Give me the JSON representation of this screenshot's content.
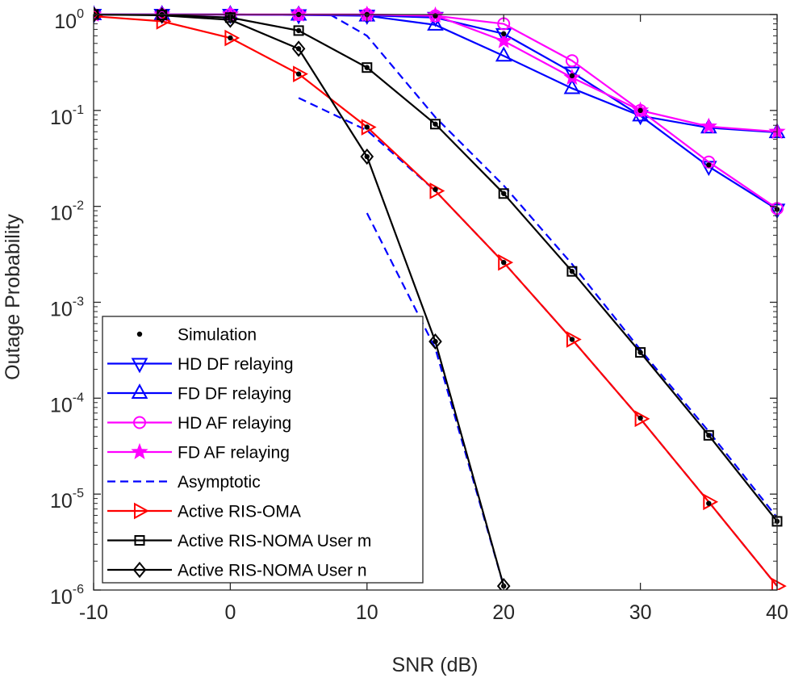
{
  "chart_data": {
    "type": "line",
    "title": "",
    "xlabel": "SNR (dB)",
    "ylabel": "Outage Probability",
    "xlim": [
      -10,
      40
    ],
    "ylim": [
      1e-06,
      1
    ],
    "yscale": "log",
    "grid": false,
    "legend_position": "bottom-left",
    "x_ticks": [
      {
        "value": -10,
        "label": "-10"
      },
      {
        "value": 0,
        "label": "0"
      },
      {
        "value": 10,
        "label": "10"
      },
      {
        "value": 20,
        "label": "20"
      },
      {
        "value": 30,
        "label": "30"
      },
      {
        "value": 40,
        "label": "40"
      }
    ],
    "y_ticks": [
      {
        "exp": 0,
        "base": "10",
        "sup": "0"
      },
      {
        "exp": -1,
        "base": "10",
        "sup": "-1"
      },
      {
        "exp": -2,
        "base": "10",
        "sup": "-2"
      },
      {
        "exp": -3,
        "base": "10",
        "sup": "-3"
      },
      {
        "exp": -4,
        "base": "10",
        "sup": "-4"
      },
      {
        "exp": -5,
        "base": "10",
        "sup": "-5"
      },
      {
        "exp": -6,
        "base": "10",
        "sup": "-6"
      }
    ],
    "legend": [
      {
        "key": "sim",
        "label": "Simulation"
      },
      {
        "key": "hd_df",
        "label": "HD DF relaying"
      },
      {
        "key": "fd_df",
        "label": "FD DF relaying"
      },
      {
        "key": "hd_af",
        "label": "HD AF relaying"
      },
      {
        "key": "fd_af",
        "label": "FD AF relaying"
      },
      {
        "key": "asym",
        "label": "Asymptotic"
      },
      {
        "key": "oma",
        "label": "Active RIS-OMA"
      },
      {
        "key": "noma_m",
        "label": "Active RIS-NOMA User m"
      },
      {
        "key": "noma_n",
        "label": "Active RIS-NOMA User n"
      }
    ],
    "series": [
      {
        "key": "hd_df",
        "name": "HD DF relaying",
        "color": "#0000ff",
        "marker": "triangle-down",
        "line": "solid",
        "x": [
          -10,
          -5,
          0,
          5,
          10,
          15,
          20,
          25,
          30,
          35,
          40
        ],
        "y": [
          1,
          1,
          1,
          0.99,
          0.98,
          0.93,
          0.63,
          0.25,
          0.088,
          0.026,
          0.0093
        ]
      },
      {
        "key": "fd_df",
        "name": "FD DF relaying",
        "color": "#0000ff",
        "marker": "triangle-up",
        "line": "solid",
        "x": [
          -10,
          -5,
          0,
          5,
          10,
          15,
          20,
          25,
          30,
          35,
          40
        ],
        "y": [
          1,
          1,
          1,
          0.99,
          0.97,
          0.78,
          0.37,
          0.17,
          0.088,
          0.066,
          0.059
        ]
      },
      {
        "key": "hd_af",
        "name": "HD AF relaying",
        "color": "#ff00ff",
        "marker": "circle",
        "line": "solid",
        "x": [
          -10,
          -5,
          0,
          5,
          10,
          15,
          20,
          25,
          30,
          35,
          40
        ],
        "y": [
          1,
          1,
          1,
          1,
          1,
          0.97,
          0.8,
          0.33,
          0.1,
          0.029,
          0.0095
        ]
      },
      {
        "key": "fd_af",
        "name": "FD AF relaying",
        "color": "#ff00ff",
        "marker": "star",
        "line": "solid",
        "x": [
          -10,
          -5,
          0,
          5,
          10,
          15,
          20,
          25,
          30,
          35,
          40
        ],
        "y": [
          1,
          1,
          1,
          1,
          1,
          0.98,
          0.53,
          0.22,
          0.1,
          0.068,
          0.06
        ]
      },
      {
        "key": "oma",
        "name": "Active RIS-OMA",
        "color": "#ff0000",
        "marker": "triangle-right",
        "line": "solid",
        "x": [
          -10,
          -5,
          0,
          5,
          10,
          15,
          20,
          25,
          30,
          35,
          40
        ],
        "y": [
          0.96,
          0.85,
          0.57,
          0.24,
          0.067,
          0.0145,
          0.0026,
          0.00041,
          6.1e-05,
          8.3e-06,
          1.1e-06
        ]
      },
      {
        "key": "noma_m",
        "name": "Active RIS-NOMA User m",
        "color": "#000000",
        "marker": "square",
        "line": "solid",
        "x": [
          -10,
          -5,
          0,
          5,
          10,
          15,
          20,
          25,
          30,
          35,
          40
        ],
        "y": [
          1,
          0.99,
          0.93,
          0.68,
          0.28,
          0.072,
          0.0136,
          0.0021,
          0.0003,
          4.1e-05,
          5.2e-06
        ]
      },
      {
        "key": "noma_n",
        "name": "Active RIS-NOMA User n",
        "color": "#000000",
        "marker": "diamond",
        "line": "solid",
        "x": [
          -10,
          -5,
          0,
          5,
          10,
          15,
          20
        ],
        "y": [
          1,
          0.98,
          0.88,
          0.44,
          0.033,
          0.00039,
          1.1e-06
        ]
      }
    ],
    "simulation": {
      "color": "#000000",
      "points": [
        {
          "x": -10,
          "y": 1
        },
        {
          "x": -5,
          "y": 1
        },
        {
          "x": 0,
          "y": 1
        },
        {
          "x": 5,
          "y": 1
        },
        {
          "x": 10,
          "y": 1
        },
        {
          "x": 15,
          "y": 0.97
        },
        {
          "x": 20,
          "y": 0.63
        },
        {
          "x": 25,
          "y": 0.23
        },
        {
          "x": 30,
          "y": 0.1
        },
        {
          "x": 35,
          "y": 0.027
        },
        {
          "x": 40,
          "y": 0.0093
        },
        {
          "x": 0,
          "y": 0.57
        },
        {
          "x": 5,
          "y": 0.24
        },
        {
          "x": 10,
          "y": 0.067
        },
        {
          "x": 15,
          "y": 0.015
        },
        {
          "x": 20,
          "y": 0.0026
        },
        {
          "x": 25,
          "y": 0.00041
        },
        {
          "x": 30,
          "y": 6.2e-05
        },
        {
          "x": 35,
          "y": 8e-06
        },
        {
          "x": -10,
          "y": 1
        },
        {
          "x": -5,
          "y": 0.99
        },
        {
          "x": 0,
          "y": 0.93
        },
        {
          "x": 5,
          "y": 0.68
        },
        {
          "x": 10,
          "y": 0.28
        },
        {
          "x": 15,
          "y": 0.072
        },
        {
          "x": 20,
          "y": 0.0136
        },
        {
          "x": 25,
          "y": 0.0021
        },
        {
          "x": 30,
          "y": 0.0003
        },
        {
          "x": 35,
          "y": 4.1e-05
        },
        {
          "x": 40,
          "y": 5.2e-06
        },
        {
          "x": 5,
          "y": 0.44
        },
        {
          "x": 10,
          "y": 0.033
        },
        {
          "x": 15,
          "y": 0.00039
        },
        {
          "x": 20,
          "y": 1.1e-06
        }
      ]
    },
    "asymptotic": {
      "color": "#0000ff",
      "line": "dashed",
      "curves": [
        {
          "x": [
            5,
            10,
            15,
            20,
            25,
            30,
            35,
            40
          ],
          "y": [
            0.135,
            0.062,
            0.0145,
            0.0026,
            0.00041,
            6.1e-05,
            8.3e-06,
            1.1e-06
          ]
        },
        {
          "x": [
            7.3,
            10,
            15,
            20,
            25,
            30,
            35,
            40
          ],
          "y": [
            1,
            0.6,
            0.085,
            0.0165,
            0.0025,
            0.00032,
            4.5e-05,
            5.7e-06
          ]
        },
        {
          "x": [
            10,
            15,
            20
          ],
          "y": [
            0.0085,
            0.00033,
            1.1e-06
          ]
        }
      ]
    }
  }
}
